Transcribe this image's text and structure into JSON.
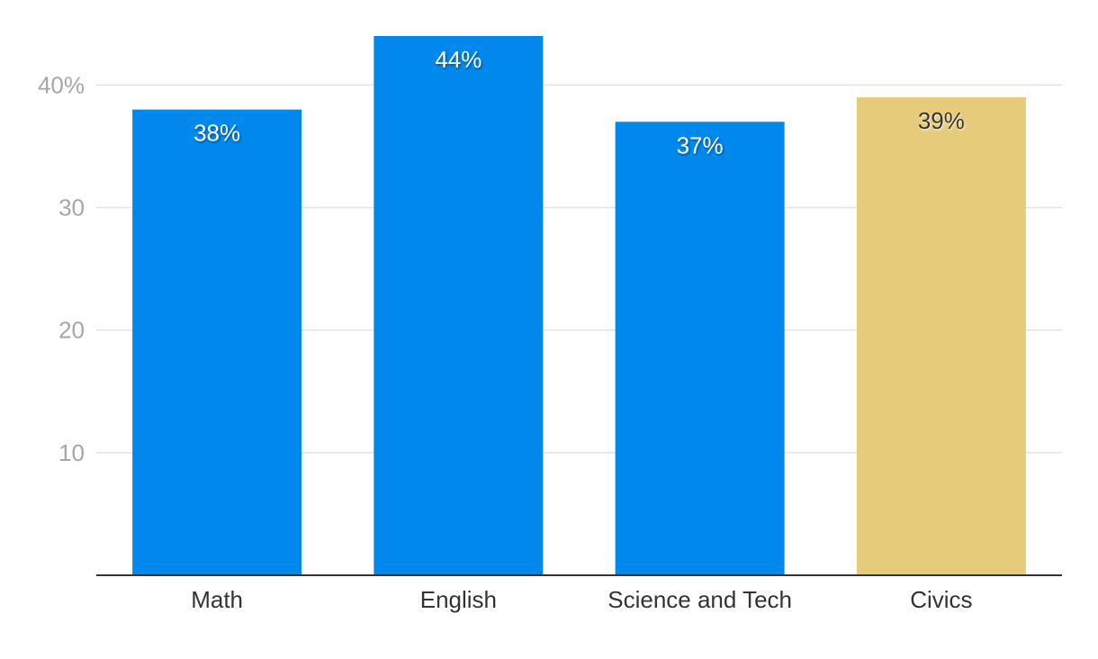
{
  "chart_data": {
    "type": "bar",
    "title": "",
    "xlabel": "",
    "ylabel": "",
    "categories": [
      "Math",
      "English",
      "Science and Tech",
      "Civics"
    ],
    "values": [
      38,
      44,
      37,
      39
    ],
    "data_labels": [
      "38%",
      "44%",
      "37%",
      "39%"
    ],
    "bar_colors": [
      "#0088ec",
      "#0088ec",
      "#0088ec",
      "#e6cb7a"
    ],
    "label_colors": [
      "#ffffff",
      "#ffffff",
      "#ffffff",
      "#333333"
    ],
    "ylim": [
      0,
      44
    ],
    "y_ticks": [
      10,
      20,
      30,
      40
    ],
    "y_tick_labels": [
      "10",
      "20",
      "30",
      "40%"
    ],
    "grid": true,
    "legend": "none"
  }
}
